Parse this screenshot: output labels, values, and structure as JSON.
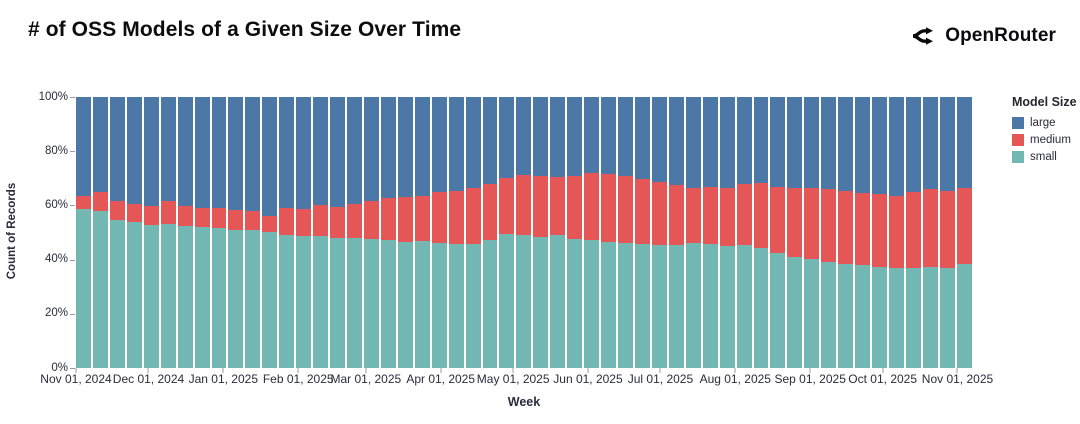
{
  "header": {
    "title": "# of OSS Models of a Given Size Over Time",
    "brand": "OpenRouter"
  },
  "colors": {
    "large": "#4c78a8",
    "medium": "#e45756",
    "small": "#72b7b2"
  },
  "legend": {
    "title": "Model Size",
    "items": [
      {
        "key": "large",
        "label": "large",
        "color": "#4c78a8"
      },
      {
        "key": "medium",
        "label": "medium",
        "color": "#e45756"
      },
      {
        "key": "small",
        "label": "small",
        "color": "#72b7b2"
      }
    ]
  },
  "chart_data": {
    "type": "bar",
    "stack": "normalize",
    "title": "# of OSS Models of a Given Size Over Time",
    "xlabel": "Week",
    "ylabel": "Count of Records",
    "ylim": [
      0,
      100
    ],
    "grid": false,
    "legend_position": "right",
    "series_order_bottom_to_top": [
      "small",
      "medium",
      "large"
    ],
    "y_axis": {
      "title": "Count of Records",
      "ticks": [
        {
          "label": "0%",
          "value": 0
        },
        {
          "label": "20%",
          "value": 20
        },
        {
          "label": "40%",
          "value": 40
        },
        {
          "label": "60%",
          "value": 60
        },
        {
          "label": "80%",
          "value": 80
        },
        {
          "label": "100%",
          "value": 100
        }
      ]
    },
    "x_axis": {
      "title": "Week",
      "ticks": [
        {
          "label": "Nov 01, 2024",
          "pos": 0
        },
        {
          "label": "Dec 01, 2024",
          "pos": 8.09
        },
        {
          "label": "Jan 01, 2025",
          "pos": 16.44
        },
        {
          "label": "Feb 01, 2025",
          "pos": 24.8
        },
        {
          "label": "Mar 01, 2025",
          "pos": 32.35
        },
        {
          "label": "Apr 01, 2025",
          "pos": 40.7
        },
        {
          "label": "May 01, 2025",
          "pos": 48.79
        },
        {
          "label": "Jun 01, 2025",
          "pos": 57.14
        },
        {
          "label": "Jul 01, 2025",
          "pos": 65.23
        },
        {
          "label": "Aug 01, 2025",
          "pos": 73.58
        },
        {
          "label": "Sep 01, 2025",
          "pos": 81.94
        },
        {
          "label": "Oct 01, 2025",
          "pos": 90.03
        },
        {
          "label": "Nov 01, 2025",
          "pos": 98.38
        }
      ]
    },
    "weeks": [
      {
        "week": "Nov 01, 2024",
        "small": 58.5,
        "medium": 5.0,
        "large": 36.5
      },
      {
        "week": "Nov 08, 2024",
        "small": 58.0,
        "medium": 7.0,
        "large": 35.0
      },
      {
        "week": "Nov 15, 2024",
        "small": 54.6,
        "medium": 7.0,
        "large": 38.4
      },
      {
        "week": "Nov 22, 2024",
        "small": 54.0,
        "medium": 6.7,
        "large": 39.3
      },
      {
        "week": "Nov 29, 2024",
        "small": 52.7,
        "medium": 7.2,
        "large": 40.1
      },
      {
        "week": "Dec 06, 2024",
        "small": 53.3,
        "medium": 8.3,
        "large": 38.4
      },
      {
        "week": "Dec 13, 2024",
        "small": 52.4,
        "medium": 7.5,
        "large": 40.1
      },
      {
        "week": "Dec 20, 2024",
        "small": 52.0,
        "medium": 7.2,
        "large": 40.8
      },
      {
        "week": "Dec 27, 2024",
        "small": 51.6,
        "medium": 7.3,
        "large": 41.1
      },
      {
        "week": "Jan 03, 2025",
        "small": 51.0,
        "medium": 7.4,
        "large": 41.6
      },
      {
        "week": "Jan 10, 2025",
        "small": 50.9,
        "medium": 7.0,
        "large": 42.1
      },
      {
        "week": "Jan 17, 2025",
        "small": 50.0,
        "medium": 6.0,
        "large": 44.0
      },
      {
        "week": "Jan 24, 2025",
        "small": 49.2,
        "medium": 9.8,
        "large": 41.0
      },
      {
        "week": "Jan 31, 2025",
        "small": 48.6,
        "medium": 10.1,
        "large": 41.3
      },
      {
        "week": "Feb 07, 2025",
        "small": 48.8,
        "medium": 11.3,
        "large": 39.9
      },
      {
        "week": "Feb 14, 2025",
        "small": 48.0,
        "medium": 11.5,
        "large": 40.5
      },
      {
        "week": "Feb 21, 2025",
        "small": 47.8,
        "medium": 12.9,
        "large": 39.3
      },
      {
        "week": "Feb 28, 2025",
        "small": 47.6,
        "medium": 14.0,
        "large": 38.4
      },
      {
        "week": "Mar 07, 2025",
        "small": 47.2,
        "medium": 15.6,
        "large": 37.2
      },
      {
        "week": "Mar 14, 2025",
        "small": 46.6,
        "medium": 16.6,
        "large": 36.8
      },
      {
        "week": "Mar 21, 2025",
        "small": 46.8,
        "medium": 16.8,
        "large": 36.4
      },
      {
        "week": "Mar 28, 2025",
        "small": 46.1,
        "medium": 18.9,
        "large": 35.0
      },
      {
        "week": "Apr 04, 2025",
        "small": 45.6,
        "medium": 19.7,
        "large": 34.7
      },
      {
        "week": "Apr 11, 2025",
        "small": 45.9,
        "medium": 20.4,
        "large": 33.7
      },
      {
        "week": "Apr 18, 2025",
        "small": 47.2,
        "medium": 20.6,
        "large": 32.2
      },
      {
        "week": "Apr 25, 2025",
        "small": 49.6,
        "medium": 20.6,
        "large": 29.8
      },
      {
        "week": "May 02, 2025",
        "small": 49.0,
        "medium": 22.2,
        "large": 28.8
      },
      {
        "week": "May 09, 2025",
        "small": 48.4,
        "medium": 22.6,
        "large": 29.0
      },
      {
        "week": "May 16, 2025",
        "small": 49.0,
        "medium": 21.6,
        "large": 29.4
      },
      {
        "week": "May 23, 2025",
        "small": 47.6,
        "medium": 23.4,
        "large": 29.0
      },
      {
        "week": "May 30, 2025",
        "small": 47.2,
        "medium": 24.7,
        "large": 28.1
      },
      {
        "week": "Jun 06, 2025",
        "small": 46.4,
        "medium": 25.1,
        "large": 28.5
      },
      {
        "week": "Jun 13, 2025",
        "small": 46.0,
        "medium": 25.0,
        "large": 29.0
      },
      {
        "week": "Jun 20, 2025",
        "small": 45.7,
        "medium": 24.1,
        "large": 30.2
      },
      {
        "week": "Jun 27, 2025",
        "small": 45.4,
        "medium": 23.1,
        "large": 31.5
      },
      {
        "week": "Jul 04, 2025",
        "small": 45.2,
        "medium": 22.3,
        "large": 32.5
      },
      {
        "week": "Jul 11, 2025",
        "small": 46.0,
        "medium": 20.5,
        "large": 33.5
      },
      {
        "week": "Jul 18, 2025",
        "small": 45.7,
        "medium": 21.2,
        "large": 33.1
      },
      {
        "week": "Jul 25, 2025",
        "small": 45.2,
        "medium": 21.3,
        "large": 33.5
      },
      {
        "week": "Aug 01, 2025",
        "small": 45.4,
        "medium": 22.4,
        "large": 32.2
      },
      {
        "week": "Aug 08, 2025",
        "small": 44.1,
        "medium": 24.0,
        "large": 31.9
      },
      {
        "week": "Aug 15, 2025",
        "small": 42.6,
        "medium": 24.3,
        "large": 33.1
      },
      {
        "week": "Aug 22, 2025",
        "small": 41.0,
        "medium": 25.5,
        "large": 33.5
      },
      {
        "week": "Aug 29, 2025",
        "small": 40.4,
        "medium": 26.1,
        "large": 33.5
      },
      {
        "week": "Sep 05, 2025",
        "small": 39.1,
        "medium": 26.9,
        "large": 34.0
      },
      {
        "week": "Sep 12, 2025",
        "small": 38.5,
        "medium": 26.8,
        "large": 34.7
      },
      {
        "week": "Sep 19, 2025",
        "small": 38.1,
        "medium": 26.3,
        "large": 35.6
      },
      {
        "week": "Sep 26, 2025",
        "small": 37.3,
        "medium": 26.8,
        "large": 35.9
      },
      {
        "week": "Oct 03, 2025",
        "small": 36.9,
        "medium": 26.7,
        "large": 36.4
      },
      {
        "week": "Oct 10, 2025",
        "small": 36.9,
        "medium": 27.9,
        "large": 35.2
      },
      {
        "week": "Oct 17, 2025",
        "small": 37.3,
        "medium": 28.7,
        "large": 34.0
      },
      {
        "week": "Oct 24, 2025",
        "small": 36.9,
        "medium": 28.4,
        "large": 34.7
      },
      {
        "week": "Oct 31, 2025",
        "small": 38.2,
        "medium": 28.2,
        "large": 33.6
      }
    ]
  }
}
